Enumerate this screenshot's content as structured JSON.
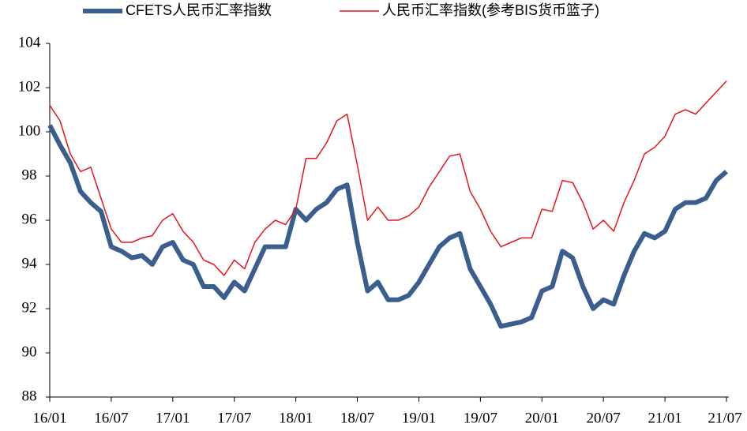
{
  "chart_data": {
    "type": "line",
    "categories": [
      "16/01",
      null,
      null,
      null,
      null,
      null,
      "16/07",
      null,
      null,
      null,
      null,
      null,
      "17/01",
      null,
      null,
      null,
      null,
      null,
      "17/07",
      null,
      null,
      null,
      null,
      null,
      "18/01",
      null,
      null,
      null,
      null,
      null,
      "18/07",
      null,
      null,
      null,
      null,
      null,
      "19/01",
      null,
      null,
      null,
      null,
      null,
      "19/07",
      null,
      null,
      null,
      null,
      null,
      "20/01",
      null,
      null,
      null,
      null,
      null,
      "20/07",
      null,
      null,
      null,
      null,
      null,
      "21/01",
      null,
      null,
      null,
      null,
      null,
      "21/07"
    ],
    "series": [
      {
        "name": "CFETS人民币汇率指数",
        "color": "#3a5f8f",
        "width": 6,
        "values": [
          100.3,
          99.4,
          98.6,
          97.3,
          96.8,
          96.4,
          94.8,
          94.6,
          94.3,
          94.4,
          94.0,
          94.8,
          95.0,
          94.2,
          94.0,
          93.0,
          93.0,
          92.5,
          93.2,
          92.8,
          93.8,
          94.8,
          94.8,
          94.8,
          96.5,
          96.0,
          96.5,
          96.8,
          97.4,
          97.6,
          95.0,
          92.8,
          93.2,
          92.4,
          92.4,
          92.6,
          93.2,
          94.0,
          94.8,
          95.2,
          95.4,
          93.8,
          93.0,
          92.2,
          91.2,
          91.3,
          91.4,
          91.6,
          92.8,
          93.0,
          94.6,
          94.3,
          93.0,
          92.0,
          92.4,
          92.2,
          93.5,
          94.6,
          95.4,
          95.2,
          95.5,
          96.5,
          96.8,
          96.8,
          97.0,
          97.8,
          98.2
        ]
      },
      {
        "name": "人民币汇率指数(参考BIS货币篮子)",
        "color": "#e8141b",
        "width": 1.5,
        "values": [
          101.2,
          100.5,
          99.0,
          98.2,
          98.4,
          97.0,
          95.6,
          95.0,
          95.0,
          95.2,
          95.3,
          96.0,
          96.3,
          95.5,
          95.0,
          94.2,
          94.0,
          93.5,
          94.2,
          93.8,
          95.0,
          95.6,
          96.0,
          95.8,
          96.5,
          98.8,
          98.8,
          99.5,
          100.5,
          100.8,
          98.5,
          96.0,
          96.6,
          96.0,
          96.0,
          96.2,
          96.6,
          97.5,
          98.2,
          98.9,
          99.0,
          97.3,
          96.5,
          95.5,
          94.8,
          95.0,
          95.2,
          95.2,
          96.5,
          96.4,
          97.8,
          97.7,
          96.8,
          95.6,
          96.0,
          95.5,
          96.8,
          97.8,
          99.0,
          99.3,
          99.8,
          100.8,
          101.0,
          100.8,
          101.3,
          101.8,
          102.3
        ]
      }
    ],
    "ylim": [
      88,
      104
    ],
    "yticks": [
      88,
      90,
      92,
      94,
      96,
      98,
      100,
      102,
      104
    ],
    "grid": false
  }
}
